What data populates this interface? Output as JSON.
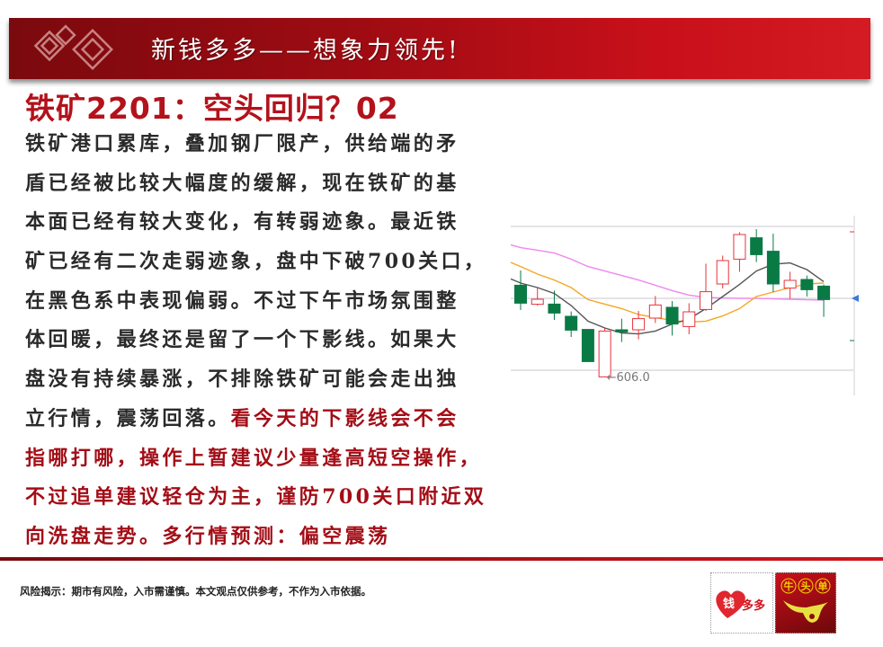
{
  "banner": {
    "title": "新钱多多——想象力领先!"
  },
  "heading": "铁矿2201：空头回归？02",
  "body_lines": [
    [
      {
        "text": "铁矿港口累库，叠加钢厂限产，供给端的矛",
        "red": false
      }
    ],
    [
      {
        "text": "盾已经被比较大幅度的缓解，现在铁矿的基",
        "red": false
      }
    ],
    [
      {
        "text": "本面已经有较大变化，有转弱迹象。最近铁",
        "red": false
      }
    ],
    [
      {
        "text": "矿已经有二次走弱迹象，盘中下破700关口，",
        "red": false
      }
    ],
    [
      {
        "text": "在黑色系中表现偏弱。不过下午市场氛围整",
        "red": false
      }
    ],
    [
      {
        "text": "体回暖，最终还是留了一个下影线。如果大",
        "red": false
      }
    ],
    [
      {
        "text": "盘没有持续暴涨，不排除铁矿可能会走出独",
        "red": false
      }
    ],
    [
      {
        "text": "立行情，震荡回落。",
        "red": false
      },
      {
        "text": "看今天的下影线会不会",
        "red": true
      }
    ],
    [
      {
        "text": "指哪打哪，操作上暂建议少量逢高短空操作，",
        "red": true
      }
    ],
    [
      {
        "text": "不过追单建议轻仓为主，谨防700关口附近双",
        "red": true
      }
    ],
    [
      {
        "text": "向洗盘走势。多行情预测：偏空震荡",
        "red": true
      }
    ]
  ],
  "chart_data": {
    "type": "candlestick",
    "annotation": "←606.0",
    "annotated_low": 606.0,
    "colors": {
      "up": "#e8323c",
      "down": "#0a7a45",
      "ma_short": "#555555",
      "ma_mid": "#f5a623",
      "ma_long": "#ee88ee"
    },
    "candles": [
      {
        "open": 657.3,
        "close": 647.3,
        "high": 665.5,
        "low": 643.5
      },
      {
        "open": 646.7,
        "close": 649.5,
        "high": 656.0,
        "low": 646.0
      },
      {
        "open": 646.8,
        "close": 641.8,
        "high": 654.3,
        "low": 638.0
      },
      {
        "open": 640.0,
        "close": 632.3,
        "high": 642.7,
        "low": 628.5
      },
      {
        "open": 632.7,
        "close": 614.8,
        "high": 632.7,
        "low": 614.8
      },
      {
        "open": 606.3,
        "close": 631.8,
        "high": 633.5,
        "low": 606.0
      },
      {
        "open": 632.5,
        "close": 631.3,
        "high": 638.7,
        "low": 625.7
      },
      {
        "open": 632.5,
        "close": 638.7,
        "high": 643.0,
        "low": 627.2
      },
      {
        "open": 639.0,
        "close": 646.3,
        "high": 651.3,
        "low": 636.3
      },
      {
        "open": 645.0,
        "close": 635.7,
        "high": 648.5,
        "low": 629.3
      },
      {
        "open": 634.3,
        "close": 642.5,
        "high": 647.3,
        "low": 630.0
      },
      {
        "open": 643.8,
        "close": 653.7,
        "high": 669.3,
        "low": 643.0
      },
      {
        "open": 658.0,
        "close": 671.0,
        "high": 673.8,
        "low": 655.5
      },
      {
        "open": 671.8,
        "close": 685.5,
        "high": 686.8,
        "low": 664.8
      },
      {
        "open": 683.7,
        "close": 674.3,
        "high": 688.5,
        "low": 670.2
      },
      {
        "open": 676.2,
        "close": 658.0,
        "high": 686.0,
        "low": 653.5
      },
      {
        "open": 655.7,
        "close": 660.0,
        "high": 664.8,
        "low": 649.8
      },
      {
        "open": 660.5,
        "close": 654.8,
        "high": 662.7,
        "low": 651.0
      },
      {
        "open": 656.8,
        "close": 649.3,
        "high": 657.7,
        "low": 639.7
      }
    ],
    "ma_short": [
      658.5,
      656,
      652.7,
      646,
      637.3,
      633.5,
      630.7,
      630.2,
      631.8,
      635.7,
      638.5,
      644.3,
      651,
      657.7,
      665.2,
      669,
      669.7,
      666,
      659.3
    ],
    "ma_mid": [
      667.7,
      663.5,
      660.2,
      656,
      649.3,
      646.8,
      644.3,
      641,
      639.3,
      637.7,
      636.8,
      637.3,
      640.2,
      644.3,
      651,
      653.5,
      656,
      658,
      658.5
    ],
    "ma_long": [
      678.2,
      676.8,
      675.2,
      671.8,
      667.7,
      665.2,
      662.7,
      660.2,
      657.3,
      654.3,
      651.8,
      650.5,
      650.2,
      650,
      650,
      649.7,
      649.5,
      649.2,
      649
    ],
    "gridlines": [
      690,
      650,
      610
    ],
    "grid": true
  },
  "footer": {
    "disclaimer": "风险揭示：期市有风险，入市需谨慎。本文观点仅供参考，不作为入市依据。"
  },
  "logos": {
    "left": "钱多多",
    "right": "牛头单"
  }
}
